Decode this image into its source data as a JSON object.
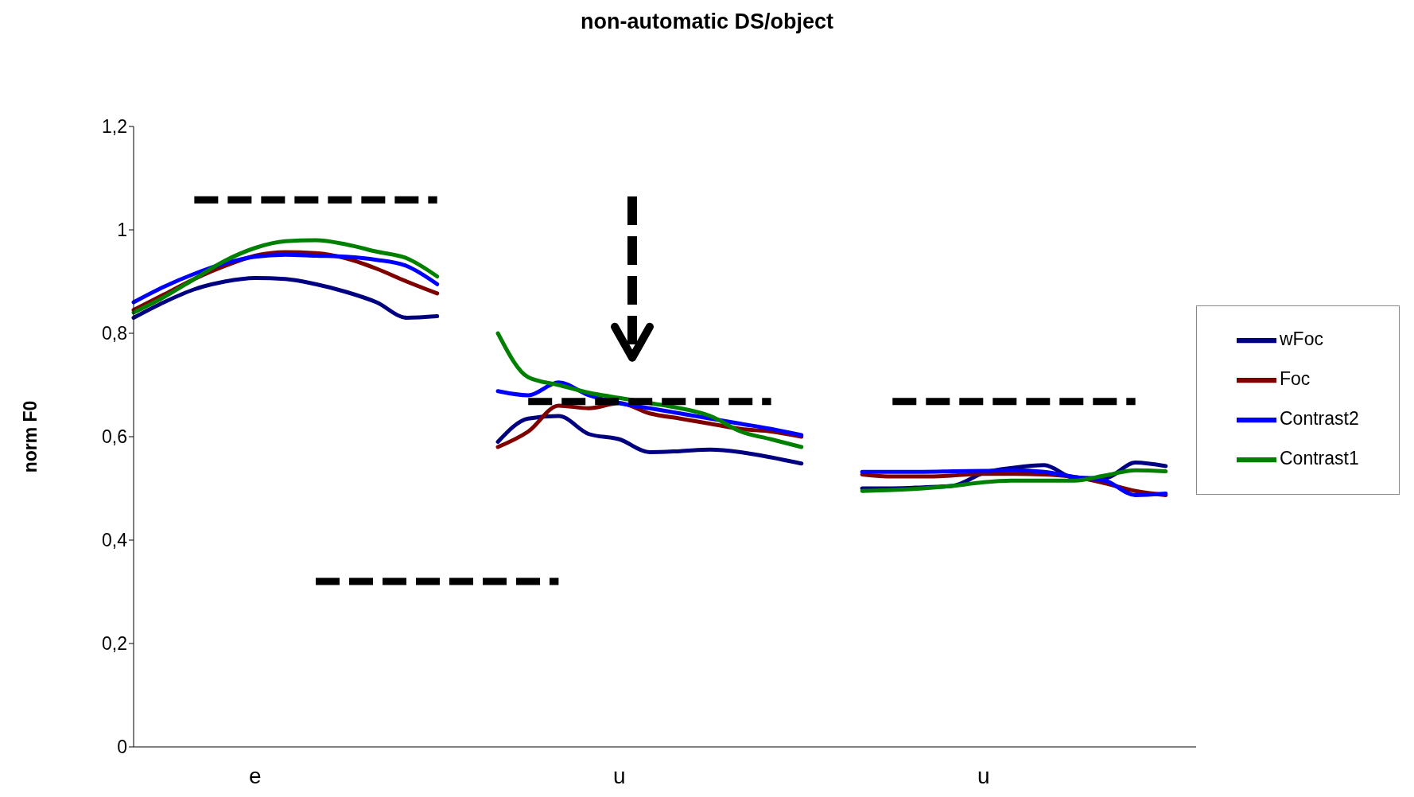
{
  "chart_data": {
    "type": "line",
    "title": "non-automatic  DS/object",
    "ylabel": "norm  F0",
    "categories": [
      null,
      null,
      null,
      null,
      "e",
      null,
      null,
      null,
      null,
      null,
      null,
      null,
      null,
      null,
      null,
      null,
      "u",
      null,
      null,
      null,
      null,
      null,
      null,
      null,
      null,
      null,
      null,
      null,
      "u",
      null,
      null,
      null,
      null,
      null,
      null,
      null
    ],
    "ylim": [
      0,
      1.2
    ],
    "yticks": [
      0,
      {
        "value": 0.2,
        "label": "0,2"
      },
      {
        "value": 0.4,
        "label": "0,4"
      },
      {
        "value": 0.6,
        "label": "0,6"
      },
      {
        "value": 0.8,
        "label": "0,8"
      },
      1,
      {
        "value": 1.2,
        "label": "1,2"
      }
    ],
    "series": [
      {
        "name": "wFoc",
        "color": "#000080",
        "values": [
          0.83,
          0.86,
          0.885,
          0.9,
          0.907,
          0.905,
          0.895,
          0.88,
          0.86,
          0.83,
          0.833,
          null,
          0.59,
          0.635,
          0.64,
          0.605,
          0.595,
          0.57,
          0.572,
          0.575,
          0.57,
          0.56,
          0.548,
          null,
          0.5,
          0.5,
          0.502,
          0.505,
          0.53,
          0.54,
          0.545,
          0.52,
          0.52,
          0.55,
          0.543,
          null
        ]
      },
      {
        "name": "Foc",
        "color": "#800000",
        "values": [
          0.845,
          0.875,
          0.905,
          0.93,
          0.95,
          0.957,
          0.955,
          0.945,
          0.925,
          0.9,
          0.877,
          null,
          0.58,
          0.61,
          0.66,
          0.655,
          0.665,
          0.645,
          0.635,
          0.625,
          0.615,
          0.61,
          0.6,
          null,
          0.527,
          0.523,
          0.523,
          0.525,
          0.528,
          0.528,
          0.527,
          0.522,
          0.51,
          0.495,
          0.487,
          null
        ]
      },
      {
        "name": "Contrast2",
        "color": "#0000ff",
        "values": [
          0.86,
          0.89,
          0.915,
          0.935,
          0.948,
          0.952,
          0.95,
          0.948,
          0.942,
          0.93,
          0.895,
          null,
          0.688,
          0.68,
          0.705,
          0.68,
          0.665,
          0.655,
          0.645,
          0.635,
          0.625,
          0.615,
          0.603,
          null,
          0.532,
          0.532,
          0.532,
          0.533,
          0.534,
          0.535,
          0.532,
          0.522,
          0.515,
          0.487,
          0.49,
          null
        ]
      },
      {
        "name": "Contrast1",
        "color": "#008000",
        "values": [
          0.84,
          0.87,
          0.905,
          0.94,
          0.965,
          0.978,
          0.98,
          0.972,
          0.958,
          0.945,
          0.91,
          null,
          0.8,
          0.715,
          0.7,
          0.685,
          0.675,
          0.665,
          0.655,
          0.64,
          0.61,
          0.595,
          0.58,
          null,
          0.495,
          0.497,
          0.5,
          0.505,
          0.512,
          0.515,
          0.515,
          0.515,
          0.525,
          0.535,
          0.533,
          null
        ]
      },
      {
        "color": "#000000",
        "line_style": "dashed",
        "values": [
          null,
          null,
          1.058,
          1.058,
          1.058,
          1.058,
          1.058,
          1.058,
          1.058,
          1.058,
          1.058,
          null,
          null,
          null,
          null,
          null,
          null,
          null,
          null,
          null,
          null,
          null,
          null,
          null,
          null,
          null,
          null,
          null,
          null,
          null,
          null,
          null,
          null,
          null,
          null,
          null
        ]
      },
      {
        "color": "#000000",
        "line_style": "dashed",
        "values": [
          null,
          null,
          null,
          null,
          null,
          null,
          0.32,
          0.32,
          0.32,
          0.32,
          0.32,
          0.32,
          0.32,
          0.32,
          0.32,
          null,
          null,
          null,
          null,
          null,
          null,
          null,
          null,
          null,
          null,
          null,
          null,
          null,
          null,
          null,
          null,
          null,
          null,
          null,
          null,
          null
        ]
      },
      {
        "color": "#000000",
        "line_style": "dashed",
        "values": [
          null,
          null,
          null,
          null,
          null,
          null,
          null,
          null,
          null,
          null,
          null,
          null,
          null,
          0.668,
          0.668,
          0.668,
          0.668,
          0.668,
          0.668,
          0.668,
          0.668,
          0.668,
          null,
          null,
          null,
          null,
          null,
          null,
          null,
          null,
          null,
          null,
          null,
          null,
          null,
          null
        ]
      },
      {
        "color": "#000000",
        "line_style": "dashed",
        "values": [
          null,
          null,
          null,
          null,
          null,
          null,
          null,
          null,
          null,
          null,
          null,
          null,
          null,
          null,
          null,
          null,
          null,
          null,
          null,
          null,
          null,
          null,
          null,
          null,
          null,
          0.668,
          0.668,
          0.668,
          0.668,
          0.668,
          0.668,
          0.668,
          0.668,
          0.668,
          null,
          null
        ]
      }
    ],
    "marker": "none",
    "line_style": "solid",
    "grid": false,
    "legend": "right"
  }
}
